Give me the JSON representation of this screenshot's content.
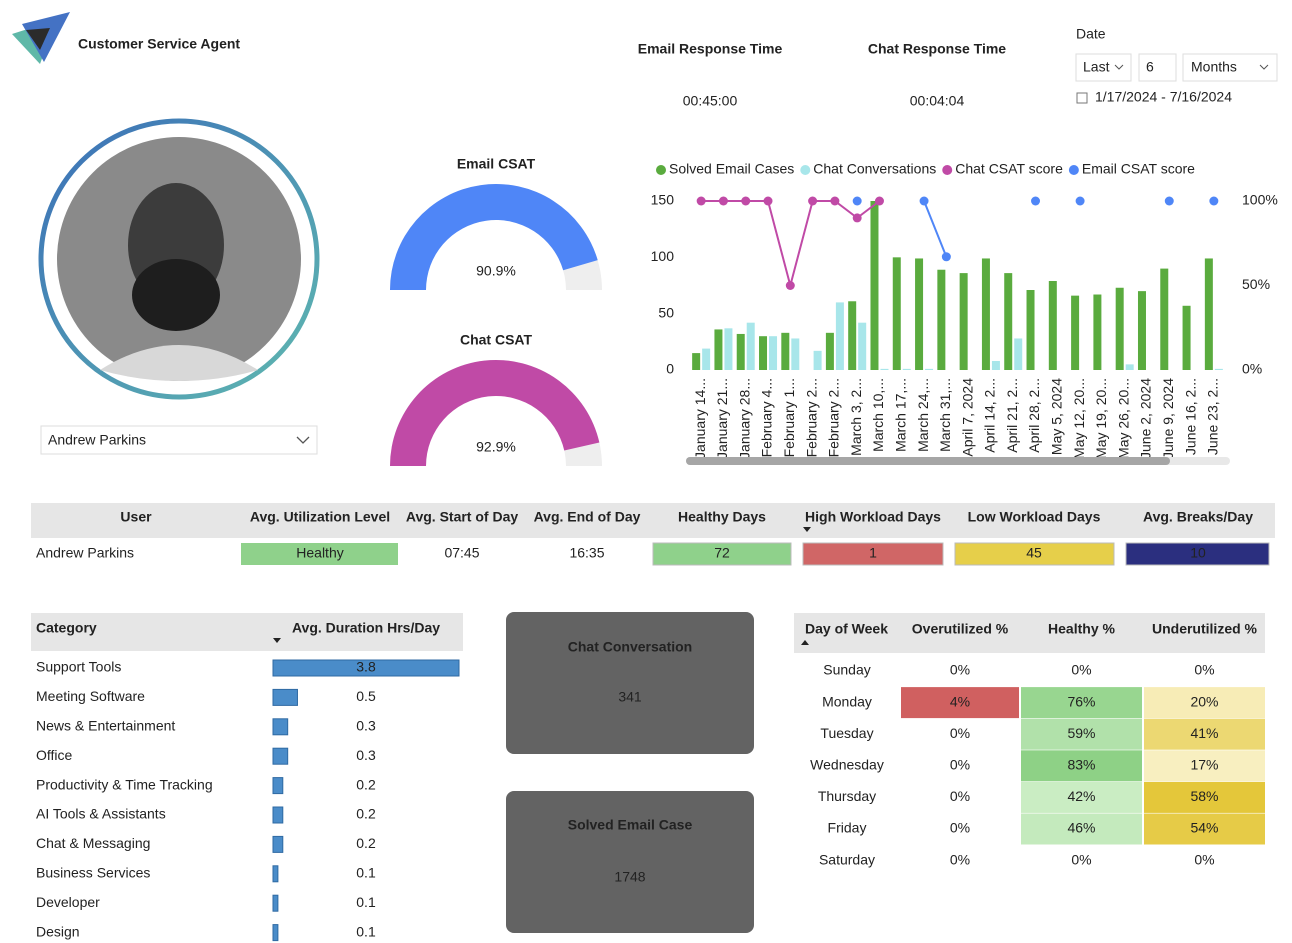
{
  "header": {
    "title": "Customer Service Agent"
  },
  "kpis": [
    {
      "title": "Email Response Time",
      "value": "00:45:00",
      "color": "#4f86f7"
    },
    {
      "title": "Chat Response Time",
      "value": "00:04:04",
      "color": "#c04aa6"
    }
  ],
  "date_filter": {
    "label": "Date",
    "mode": "Last",
    "count": "6",
    "unit": "Months",
    "range": "1/17/2024 - 7/16/2024"
  },
  "agent": {
    "name": "Andrew Parkins"
  },
  "gauges": [
    {
      "title": "Email CSAT",
      "value": 90.9,
      "value_label": "90.9%",
      "max": 100,
      "color": "#4f86f7"
    },
    {
      "title": "Chat CSAT",
      "value": 92.9,
      "value_label": "92.9%",
      "max": 100,
      "color": "#c04aa6"
    }
  ],
  "chart_data": {
    "type": "combo",
    "categories": [
      "January 14...",
      "January 21...",
      "January 28...",
      "February 4...",
      "February 1...",
      "February 2...",
      "February 2...",
      "March 3, 2...",
      "March 10,...",
      "March 17,...",
      "March 24,...",
      "March 31,...",
      "April 7, 2024",
      "April 14, 2...",
      "April 21, 2...",
      "April 28, 2...",
      "May 5, 2024",
      "May 12, 20...",
      "May 19, 20...",
      "May 26, 20...",
      "June 2, 2024",
      "June 9, 2024",
      "June 16, 2...",
      "June 23, 2..."
    ],
    "series": [
      {
        "name": "Solved Email Cases",
        "type": "bar",
        "color": "#5aab3e",
        "values": [
          15,
          36,
          32,
          30,
          33,
          0,
          33,
          61,
          150,
          100,
          99,
          89,
          86,
          99,
          86,
          71,
          79,
          66,
          67,
          73,
          70,
          90,
          57,
          99
        ]
      },
      {
        "name": "Chat Conversations",
        "type": "bar",
        "color": "#a8e6ea",
        "values": [
          19,
          37,
          42,
          30,
          28,
          17,
          60,
          42,
          1,
          1,
          1,
          0,
          0,
          8,
          28,
          0,
          0,
          0,
          0,
          5,
          0,
          0,
          0,
          1
        ]
      },
      {
        "name": "Chat CSAT score",
        "type": "line",
        "axis": "y2",
        "color": "#c04aa6",
        "values": [
          100,
          100,
          100,
          100,
          50,
          100,
          100,
          90,
          100,
          null,
          null,
          null,
          null,
          null,
          null,
          null,
          null,
          null,
          null,
          null,
          null,
          null,
          null,
          null
        ]
      },
      {
        "name": "Email CSAT score",
        "type": "line",
        "axis": "y2",
        "color": "#4f86f7",
        "values": [
          null,
          null,
          null,
          null,
          null,
          null,
          null,
          100,
          null,
          null,
          100,
          67,
          null,
          null,
          null,
          100,
          null,
          100,
          null,
          null,
          null,
          100,
          null,
          100
        ]
      }
    ],
    "ylim": [
      0,
      150
    ],
    "yticks": [
      0,
      50,
      100,
      150
    ],
    "y2lim": [
      0,
      100
    ],
    "y2ticks": [
      {
        "value": 0,
        "label": "0%"
      },
      {
        "value": 50,
        "label": "50%"
      },
      {
        "value": 100,
        "label": "100%"
      }
    ],
    "grid": false
  },
  "user_table": {
    "columns": [
      "User",
      "Avg. Utilization Level",
      "Avg. Start of Day",
      "Avg. End of Day",
      "Healthy Days",
      "High Workload Days",
      "Low Workload Days",
      "Avg. Breaks/Day"
    ],
    "rows": [
      [
        "Andrew Parkins",
        "Healthy",
        "07:45",
        "16:35",
        72,
        1,
        45,
        10
      ]
    ]
  },
  "category_table": {
    "columns": [
      "Category",
      "Avg. Duration Hrs/Day"
    ],
    "rows": [
      {
        "name": "Support Tools",
        "value": 3.8
      },
      {
        "name": "Meeting Software",
        "value": 0.5
      },
      {
        "name": "News & Entertainment",
        "value": 0.3
      },
      {
        "name": "Office",
        "value": 0.3
      },
      {
        "name": "Productivity & Time Tracking",
        "value": 0.2
      },
      {
        "name": "AI Tools & Assistants",
        "value": 0.2
      },
      {
        "name": "Chat & Messaging",
        "value": 0.2
      },
      {
        "name": "Business Services",
        "value": 0.1
      },
      {
        "name": "Developer",
        "value": 0.1
      },
      {
        "name": "Design",
        "value": 0.1
      }
    ]
  },
  "cards": [
    {
      "title": "Chat Conversation",
      "value": 341
    },
    {
      "title": "Solved Email Case",
      "value": 1748
    }
  ],
  "weekday_table": {
    "columns": [
      "Day of Week",
      "Overutilized %",
      "Healthy %",
      "Underutilized %"
    ],
    "rows": [
      [
        "Sunday",
        "0%",
        "0%",
        "0%"
      ],
      [
        "Monday",
        "4%",
        "76%",
        "20%"
      ],
      [
        "Tuesday",
        "0%",
        "59%",
        "41%"
      ],
      [
        "Wednesday",
        "0%",
        "83%",
        "17%"
      ],
      [
        "Thursday",
        "0%",
        "42%",
        "58%"
      ],
      [
        "Friday",
        "0%",
        "46%",
        "54%"
      ],
      [
        "Saturday",
        "0%",
        "0%",
        "0%"
      ]
    ]
  }
}
